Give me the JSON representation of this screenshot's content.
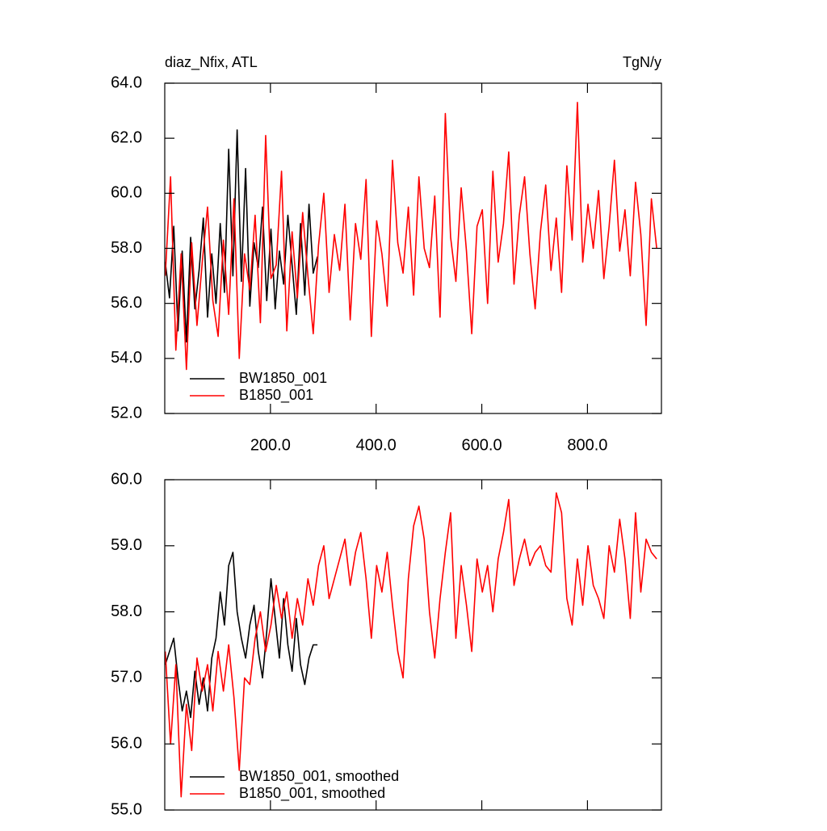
{
  "chart_data": [
    {
      "type": "line",
      "title": "diaz_Nfix, ATL",
      "unit_label": "TgN/y",
      "xlim": [
        0,
        940
      ],
      "ylim": [
        52,
        64
      ],
      "xticks": [
        {
          "value": 200,
          "label": "200.0"
        },
        {
          "value": 400,
          "label": "400.0"
        },
        {
          "value": 600,
          "label": "600.0"
        },
        {
          "value": 800,
          "label": "800.0"
        }
      ],
      "yticks": [
        {
          "value": 52,
          "label": "52.0"
        },
        {
          "value": 54,
          "label": "54.0"
        },
        {
          "value": 56,
          "label": "56.0"
        },
        {
          "value": 58,
          "label": "58.0"
        },
        {
          "value": 60,
          "label": "60.0"
        },
        {
          "value": 62,
          "label": "62.0"
        },
        {
          "value": 64,
          "label": "64.0"
        }
      ],
      "series": [
        {
          "name": "BW1850_001",
          "color": "#000000",
          "x": [
            1,
            9,
            17,
            25,
            33,
            41,
            49,
            57,
            65,
            73,
            81,
            89,
            97,
            105,
            113,
            121,
            129,
            137,
            145,
            153,
            161,
            169,
            177,
            185,
            193,
            201,
            209,
            217,
            225,
            233,
            241,
            249,
            257,
            265,
            273,
            281,
            289
          ],
          "values": [
            57.5,
            56.2,
            58.8,
            55.0,
            57.9,
            54.6,
            58.4,
            55.8,
            57.2,
            59.1,
            55.5,
            57.8,
            56.0,
            58.9,
            56.4,
            61.6,
            57.0,
            62.3,
            56.8,
            60.9,
            55.9,
            58.2,
            57.3,
            59.5,
            56.1,
            58.7,
            55.8,
            57.9,
            56.7,
            59.2,
            57.4,
            55.6,
            58.9,
            56.3,
            59.6,
            57.1,
            57.7
          ]
        },
        {
          "name": "B1850_001",
          "color": "#ff0000",
          "x": [
            1,
            11,
            21,
            31,
            41,
            51,
            61,
            71,
            81,
            91,
            101,
            111,
            121,
            131,
            141,
            151,
            161,
            171,
            181,
            191,
            201,
            211,
            221,
            231,
            241,
            251,
            261,
            271,
            281,
            291,
            301,
            311,
            321,
            331,
            341,
            351,
            361,
            371,
            381,
            391,
            401,
            411,
            421,
            431,
            441,
            451,
            461,
            471,
            481,
            491,
            501,
            511,
            521,
            531,
            541,
            551,
            561,
            571,
            581,
            591,
            601,
            611,
            621,
            631,
            641,
            651,
            661,
            671,
            681,
            691,
            701,
            711,
            721,
            731,
            741,
            751,
            761,
            771,
            781,
            791,
            801,
            811,
            821,
            831,
            841,
            851,
            861,
            871,
            881,
            891,
            901,
            911,
            921,
            931
          ],
          "values": [
            57.0,
            60.6,
            54.3,
            57.8,
            53.6,
            58.2,
            55.2,
            57.5,
            59.5,
            56.1,
            54.8,
            58.3,
            55.6,
            59.8,
            54.0,
            57.8,
            56.5,
            59.2,
            55.3,
            62.1,
            56.9,
            57.4,
            60.8,
            55.0,
            58.6,
            56.2,
            59.3,
            57.0,
            54.9,
            58.1,
            60.0,
            56.4,
            58.5,
            57.2,
            59.6,
            55.4,
            58.9,
            57.6,
            60.5,
            54.8,
            59.0,
            57.8,
            55.9,
            61.2,
            58.2,
            57.1,
            59.5,
            56.3,
            60.6,
            58.0,
            57.3,
            59.9,
            55.5,
            62.9,
            58.4,
            56.8,
            60.2,
            57.9,
            54.9,
            58.8,
            59.4,
            56.0,
            60.8,
            57.5,
            58.9,
            61.5,
            56.7,
            59.2,
            60.6,
            57.8,
            55.8,
            58.6,
            60.3,
            57.2,
            59.1,
            56.4,
            61.0,
            58.3,
            63.3,
            57.5,
            59.6,
            58.0,
            60.1,
            56.9,
            58.8,
            61.2,
            57.9,
            59.4,
            57.0,
            60.4,
            58.5,
            55.2,
            59.8,
            58.0
          ]
        }
      ]
    },
    {
      "type": "line",
      "xlim": [
        0,
        940
      ],
      "ylim": [
        55,
        60
      ],
      "xticks": [
        200,
        400,
        600,
        800
      ],
      "yticks": [
        {
          "value": 55,
          "label": "55.0"
        },
        {
          "value": 56,
          "label": "56.0"
        },
        {
          "value": 57,
          "label": "57.0"
        },
        {
          "value": 58,
          "label": "58.0"
        },
        {
          "value": 59,
          "label": "59.0"
        },
        {
          "value": 60,
          "label": "60.0"
        }
      ],
      "series": [
        {
          "name": "BW1850_001, smoothed",
          "color": "#000000",
          "x": [
            1,
            9,
            17,
            25,
            33,
            41,
            49,
            57,
            65,
            73,
            81,
            89,
            97,
            105,
            113,
            121,
            129,
            137,
            145,
            153,
            161,
            169,
            177,
            185,
            193,
            201,
            209,
            217,
            225,
            233,
            241,
            249,
            257,
            265,
            273,
            281,
            289
          ],
          "values": [
            57.2,
            57.4,
            57.6,
            57.0,
            56.5,
            56.8,
            56.4,
            57.1,
            56.6,
            57.0,
            56.5,
            57.3,
            57.6,
            58.3,
            57.8,
            58.7,
            58.9,
            58.0,
            57.6,
            57.3,
            57.8,
            58.1,
            57.4,
            57.0,
            57.7,
            58.5,
            57.9,
            57.3,
            58.2,
            57.5,
            57.1,
            57.9,
            57.2,
            56.9,
            57.3,
            57.5,
            57.5
          ]
        },
        {
          "name": "B1850_001, smoothed",
          "color": "#ff0000",
          "x": [
            1,
            11,
            21,
            31,
            41,
            51,
            61,
            71,
            81,
            91,
            101,
            111,
            121,
            131,
            141,
            151,
            161,
            171,
            181,
            191,
            201,
            211,
            221,
            231,
            241,
            251,
            261,
            271,
            281,
            291,
            301,
            311,
            321,
            331,
            341,
            351,
            361,
            371,
            381,
            391,
            401,
            411,
            421,
            431,
            441,
            451,
            461,
            471,
            481,
            491,
            501,
            511,
            521,
            531,
            541,
            551,
            561,
            571,
            581,
            591,
            601,
            611,
            621,
            631,
            641,
            651,
            661,
            671,
            681,
            691,
            701,
            711,
            721,
            731,
            741,
            751,
            761,
            771,
            781,
            791,
            801,
            811,
            821,
            831,
            841,
            851,
            861,
            871,
            881,
            891,
            901,
            911,
            921,
            931
          ],
          "values": [
            57.4,
            56.0,
            57.2,
            55.2,
            56.6,
            55.9,
            57.3,
            56.8,
            57.2,
            56.5,
            57.4,
            56.8,
            57.5,
            56.7,
            55.6,
            57.0,
            56.9,
            57.6,
            58.0,
            57.4,
            57.8,
            58.4,
            57.9,
            58.3,
            57.6,
            58.2,
            57.8,
            58.5,
            58.1,
            58.7,
            59.0,
            58.2,
            58.5,
            58.8,
            59.1,
            58.4,
            58.9,
            59.2,
            58.5,
            57.6,
            58.7,
            58.3,
            58.9,
            58.1,
            57.4,
            57.0,
            58.5,
            59.3,
            59.6,
            59.1,
            58.0,
            57.3,
            58.2,
            58.9,
            59.5,
            57.6,
            58.7,
            58.1,
            57.4,
            58.8,
            58.3,
            58.7,
            58.0,
            58.8,
            59.2,
            59.7,
            58.4,
            58.8,
            59.1,
            58.7,
            58.9,
            59.0,
            58.7,
            58.6,
            59.8,
            59.5,
            58.2,
            57.8,
            58.8,
            58.1,
            59.0,
            58.4,
            58.2,
            57.9,
            59.0,
            58.6,
            59.4,
            58.8,
            57.9,
            59.5,
            58.3,
            59.1,
            58.9,
            58.8
          ]
        }
      ]
    }
  ]
}
